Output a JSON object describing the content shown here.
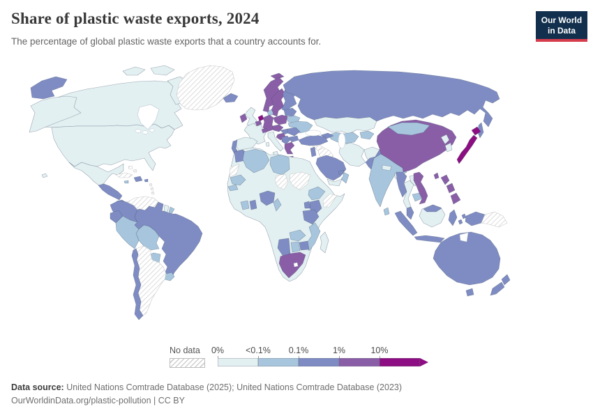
{
  "header": {
    "title": "Share of plastic waste exports, 2024",
    "subtitle": "The percentage of global plastic waste exports that a country accounts for."
  },
  "logo": {
    "line1": "Our World",
    "line2": "in Data",
    "bg": "#12304e",
    "accent": "#d73c4c",
    "text_color": "#ffffff"
  },
  "legend": {
    "no_data_label": "No data",
    "ticks": [
      "0%",
      "<0.1%",
      "0.1%",
      "1%",
      "10%"
    ]
  },
  "footer": {
    "source_label": "Data source:",
    "source_text": " United Nations Comtrade Database (2025); United Nations Comtrade Database (2023)",
    "citation": "OurWorldinData.org/plastic-pollution | CC BY"
  },
  "chart_data": {
    "type": "choropleth-world-map",
    "title": "Share of plastic waste exports, 2024",
    "unit": "share of global plastic waste exports (%)",
    "legend_position": "bottom",
    "legend_bins": [
      {
        "id": "b0",
        "range": "0%-<0.1%",
        "color": "#e3f0f2"
      },
      {
        "id": "b1",
        "range": "<0.1%-0.1%",
        "color": "#a7c6dd"
      },
      {
        "id": "b2",
        "range": "0.1%-1%",
        "color": "#7e8cc3"
      },
      {
        "id": "b3",
        "range": "1%-10%",
        "color": "#8a5ea7"
      },
      {
        "id": "b4",
        "range": ">10%",
        "color": "#8c0e82"
      },
      {
        "id": "nodata",
        "range": "No data",
        "color": "hatch"
      }
    ],
    "regions": [
      {
        "id": "canada",
        "label": "Canada",
        "bin": "b0"
      },
      {
        "id": "arctic-islands",
        "label": "Canada (Arctic islands)",
        "bin": "b0"
      },
      {
        "id": "alaska",
        "label": "United States (Alaska)",
        "bin": "b0"
      },
      {
        "id": "united-states",
        "label": "United States",
        "bin": "b0"
      },
      {
        "id": "hawaii",
        "label": "United States (Hawaii)",
        "bin": "b0"
      },
      {
        "id": "mexico",
        "label": "Mexico",
        "bin": "b0"
      },
      {
        "id": "greenland",
        "label": "Greenland",
        "bin": "nodata"
      },
      {
        "id": "russia-east",
        "label": "Russia (Chukotka)",
        "bin": "b2"
      },
      {
        "id": "cuba",
        "label": "Cuba",
        "bin": "nodata"
      },
      {
        "id": "bahamas",
        "label": "Bahamas",
        "bin": "nodata"
      },
      {
        "id": "jamaica",
        "label": "Jamaica",
        "bin": "b1"
      },
      {
        "id": "dominican-republic",
        "label": "Dominican Republic",
        "bin": "b2"
      },
      {
        "id": "puerto-rico",
        "label": "Puerto Rico",
        "bin": "b2"
      },
      {
        "id": "lesser-antilles",
        "label": "Lesser Antilles",
        "bin": "nodata"
      },
      {
        "id": "central-america",
        "label": "Guatemala, Honduras, Nicaragua, Costa Rica",
        "bin": "b2"
      },
      {
        "id": "panama",
        "label": "Panama",
        "bin": "b2"
      },
      {
        "id": "colombia",
        "label": "Colombia",
        "bin": "b2"
      },
      {
        "id": "venezuela",
        "label": "Venezuela",
        "bin": "nodata"
      },
      {
        "id": "guyana",
        "label": "Guyana",
        "bin": "b1"
      },
      {
        "id": "suriname",
        "label": "Suriname",
        "bin": "b0"
      },
      {
        "id": "french-guiana",
        "label": "French Guiana",
        "bin": "b1"
      },
      {
        "id": "ecuador",
        "label": "Ecuador",
        "bin": "b2"
      },
      {
        "id": "peru",
        "label": "Peru",
        "bin": "b1"
      },
      {
        "id": "brazil",
        "label": "Brazil",
        "bin": "b2"
      },
      {
        "id": "bolivia",
        "label": "Bolivia",
        "bin": "b1"
      },
      {
        "id": "paraguay",
        "label": "Paraguay",
        "bin": "b1"
      },
      {
        "id": "uruguay",
        "label": "Uruguay",
        "bin": "b1"
      },
      {
        "id": "argentina",
        "label": "Argentina",
        "bin": "nodata"
      },
      {
        "id": "chile",
        "label": "Chile",
        "bin": "b2"
      },
      {
        "id": "iceland",
        "label": "Iceland",
        "bin": "b2"
      },
      {
        "id": "ireland",
        "label": "Ireland",
        "bin": "b3"
      },
      {
        "id": "united-kingdom",
        "label": "United Kingdom",
        "bin": "b0"
      },
      {
        "id": "norway",
        "label": "Norway",
        "bin": "b3"
      },
      {
        "id": "svalbard",
        "label": "Svalbard",
        "bin": "b3"
      },
      {
        "id": "sweden",
        "label": "Sweden",
        "bin": "b3"
      },
      {
        "id": "finland",
        "label": "Finland",
        "bin": "b2"
      },
      {
        "id": "denmark",
        "label": "Denmark",
        "bin": "b1"
      },
      {
        "id": "netherlands",
        "label": "Netherlands",
        "bin": "b4"
      },
      {
        "id": "belgium",
        "label": "Belgium",
        "bin": "b3"
      },
      {
        "id": "germany",
        "label": "Germany",
        "bin": "b3"
      },
      {
        "id": "france",
        "label": "France",
        "bin": "b0"
      },
      {
        "id": "spain",
        "label": "Spain",
        "bin": "b0"
      },
      {
        "id": "portugal",
        "label": "Portugal",
        "bin": "b2"
      },
      {
        "id": "italy",
        "label": "Italy",
        "bin": "b0"
      },
      {
        "id": "switzerland",
        "label": "Switzerland",
        "bin": "b3"
      },
      {
        "id": "czechia-austria",
        "label": "Czechia, Austria",
        "bin": "b3"
      },
      {
        "id": "poland",
        "label": "Poland",
        "bin": "b3"
      },
      {
        "id": "baltics",
        "label": "Estonia, Latvia, Lithuania",
        "bin": "b2"
      },
      {
        "id": "belarus",
        "label": "Belarus",
        "bin": "b1"
      },
      {
        "id": "ukraine",
        "label": "Ukraine",
        "bin": "b1"
      },
      {
        "id": "hungary-slovakia",
        "label": "Hungary, Slovakia",
        "bin": "b2"
      },
      {
        "id": "croatia-slovenia",
        "label": "Croatia, Slovenia",
        "bin": "b3"
      },
      {
        "id": "serbia",
        "label": "Serbia, Bosnia",
        "bin": "b2"
      },
      {
        "id": "romania",
        "label": "Romania",
        "bin": "b2"
      },
      {
        "id": "bulgaria",
        "label": "Bulgaria",
        "bin": "b2"
      },
      {
        "id": "greece",
        "label": "Greece",
        "bin": "b3"
      },
      {
        "id": "russia",
        "label": "Russia",
        "bin": "b2"
      },
      {
        "id": "sakhalin",
        "label": "Russia (Sakhalin)",
        "bin": "b2"
      },
      {
        "id": "turkey",
        "label": "Turkey",
        "bin": "b2"
      },
      {
        "id": "caucasus",
        "label": "Georgia, Azerbaijan",
        "bin": "b2"
      },
      {
        "id": "syria",
        "label": "Syria",
        "bin": "nodata"
      },
      {
        "id": "iraq",
        "label": "Iraq",
        "bin": "nodata"
      },
      {
        "id": "israel-jordan",
        "label": "Israel, Jordan",
        "bin": "b2"
      },
      {
        "id": "saudi-arabia",
        "label": "Saudi Arabia",
        "bin": "b2"
      },
      {
        "id": "yemen",
        "label": "Yemen",
        "bin": "b0"
      },
      {
        "id": "oman",
        "label": "Oman",
        "bin": "b1"
      },
      {
        "id": "uae",
        "label": "United Arab Emirates",
        "bin": "b2"
      },
      {
        "id": "iran",
        "label": "Iran",
        "bin": "b0"
      },
      {
        "id": "afghanistan",
        "label": "Afghanistan",
        "bin": "b0"
      },
      {
        "id": "pakistan",
        "label": "Pakistan",
        "bin": "b2"
      },
      {
        "id": "kazakhstan",
        "label": "Kazakhstan",
        "bin": "b0"
      },
      {
        "id": "central-asia",
        "label": "Turkmenistan, Uzbekistan",
        "bin": "b1"
      },
      {
        "id": "kyrgyzstan-tajikistan",
        "label": "Kyrgyzstan, Tajikistan",
        "bin": "b1"
      },
      {
        "id": "india",
        "label": "India",
        "bin": "b1"
      },
      {
        "id": "nepal",
        "label": "Nepal",
        "bin": "b0"
      },
      {
        "id": "bangladesh",
        "label": "Bangladesh",
        "bin": "b0"
      },
      {
        "id": "sri-lanka",
        "label": "Sri Lanka",
        "bin": "b1"
      },
      {
        "id": "china",
        "label": "China",
        "bin": "b3"
      },
      {
        "id": "mongolia",
        "label": "Mongolia",
        "bin": "b1"
      },
      {
        "id": "north-korea",
        "label": "North Korea",
        "bin": "b0"
      },
      {
        "id": "south-korea",
        "label": "South Korea",
        "bin": "b0"
      },
      {
        "id": "japan",
        "label": "Japan",
        "bin": "b4"
      },
      {
        "id": "taiwan",
        "label": "Taiwan",
        "bin": "b3"
      },
      {
        "id": "myanmar",
        "label": "Myanmar",
        "bin": "b2"
      },
      {
        "id": "thailand",
        "label": "Thailand",
        "bin": "b0"
      },
      {
        "id": "laos",
        "label": "Laos",
        "bin": "b0"
      },
      {
        "id": "cambodia",
        "label": "Cambodia",
        "bin": "b1"
      },
      {
        "id": "vietnam",
        "label": "Vietnam",
        "bin": "b3"
      },
      {
        "id": "malaysia",
        "label": "Malaysia",
        "bin": "b2"
      },
      {
        "id": "malaysia-borneo",
        "label": "Malaysia (Borneo)",
        "bin": "b2"
      },
      {
        "id": "kalimantan",
        "label": "Indonesia (Kalimantan)",
        "bin": "b0"
      },
      {
        "id": "sumatra",
        "label": "Indonesia (Sumatra)",
        "bin": "b2"
      },
      {
        "id": "java",
        "label": "Indonesia (Java)",
        "bin": "b2"
      },
      {
        "id": "sulawesi",
        "label": "Indonesia (Sulawesi)",
        "bin": "b2"
      },
      {
        "id": "moluccas",
        "label": "Indonesia (Moluccas)",
        "bin": "b2"
      },
      {
        "id": "indonesia-papua",
        "label": "Indonesia (Papua)",
        "bin": "b2"
      },
      {
        "id": "papua-new-guinea",
        "label": "Papua New Guinea",
        "bin": "nodata"
      },
      {
        "id": "philippines",
        "label": "Philippines",
        "bin": "b3"
      },
      {
        "id": "australia",
        "label": "Australia",
        "bin": "b2"
      },
      {
        "id": "tasmania",
        "label": "Australia (Tasmania)",
        "bin": "b2"
      },
      {
        "id": "new-zealand",
        "label": "New Zealand",
        "bin": "b2"
      },
      {
        "id": "africa-base",
        "label": "Other African countries",
        "bin": "b0"
      },
      {
        "id": "morocco",
        "label": "Morocco",
        "bin": "b2"
      },
      {
        "id": "western-sahara",
        "label": "Western Sahara",
        "bin": "nodata"
      },
      {
        "id": "algeria",
        "label": "Algeria",
        "bin": "b1"
      },
      {
        "id": "libya",
        "label": "Libya",
        "bin": "b1"
      },
      {
        "id": "mauritania",
        "label": "Mauritania",
        "bin": "b1"
      },
      {
        "id": "senegal",
        "label": "Senegal",
        "bin": "b1"
      },
      {
        "id": "cote-divoire",
        "label": "Côte d'Ivoire",
        "bin": "b1"
      },
      {
        "id": "ghana",
        "label": "Ghana",
        "bin": "b2"
      },
      {
        "id": "nigeria",
        "label": "Nigeria",
        "bin": "b2"
      },
      {
        "id": "cameroon",
        "label": "Cameroon",
        "bin": "b1"
      },
      {
        "id": "chad",
        "label": "Chad",
        "bin": "nodata"
      },
      {
        "id": "sudan",
        "label": "Sudan",
        "bin": "nodata"
      },
      {
        "id": "ethiopia",
        "label": "Ethiopia",
        "bin": "b1"
      },
      {
        "id": "somalia",
        "label": "Somalia",
        "bin": "nodata"
      },
      {
        "id": "kenya",
        "label": "Kenya",
        "bin": "b2"
      },
      {
        "id": "uganda",
        "label": "Uganda",
        "bin": "b2"
      },
      {
        "id": "tanzania",
        "label": "Tanzania",
        "bin": "b2"
      },
      {
        "id": "zambia",
        "label": "Zambia",
        "bin": "b1"
      },
      {
        "id": "mozambique",
        "label": "Mozambique",
        "bin": "b1"
      },
      {
        "id": "zimbabwe",
        "label": "Zimbabwe",
        "bin": "b2"
      },
      {
        "id": "botswana",
        "label": "Botswana",
        "bin": "b1"
      },
      {
        "id": "namibia",
        "label": "Namibia",
        "bin": "b2"
      },
      {
        "id": "south-africa",
        "label": "South Africa",
        "bin": "b3"
      },
      {
        "id": "madagascar",
        "label": "Madagascar",
        "bin": "b0"
      }
    ]
  }
}
